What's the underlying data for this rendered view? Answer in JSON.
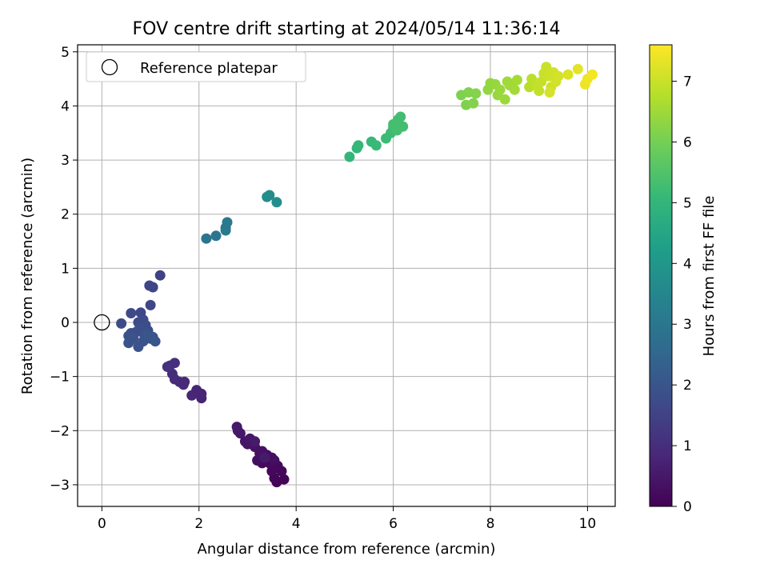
{
  "chart_data": {
    "type": "scatter",
    "title": "FOV centre drift starting at 2024/05/14 11:36:14",
    "xlabel": "Angular distance from reference (arcmin)",
    "ylabel": "Rotation from reference (arcmin)",
    "xlim": [
      -0.5,
      10.57
    ],
    "ylim": [
      -3.4,
      5.13
    ],
    "xticks": [
      0,
      2,
      4,
      6,
      8,
      10
    ],
    "yticks": [
      -3,
      -2,
      -1,
      0,
      1,
      2,
      3,
      4,
      5
    ],
    "grid": true,
    "legend": {
      "position": "top-left",
      "entries": [
        "Reference platepar"
      ]
    },
    "reference_point": {
      "name": "Reference platepar",
      "x": 0,
      "y": 0,
      "marker": "open-circle"
    },
    "colorbar": {
      "label": "Hours from first FF file",
      "range": [
        0,
        7.6
      ],
      "ticks": [
        0,
        1,
        2,
        3,
        4,
        5,
        6,
        7
      ],
      "colormap": "viridis"
    },
    "points": [
      {
        "x": 3.6,
        "y": -2.95,
        "c": 0.05
      },
      {
        "x": 3.75,
        "y": -2.9,
        "c": 0.08
      },
      {
        "x": 3.55,
        "y": -2.88,
        "c": 0.1
      },
      {
        "x": 3.7,
        "y": -2.75,
        "c": 0.12
      },
      {
        "x": 3.5,
        "y": -2.75,
        "c": 0.15
      },
      {
        "x": 3.62,
        "y": -2.65,
        "c": 0.18
      },
      {
        "x": 3.45,
        "y": -2.6,
        "c": 0.2
      },
      {
        "x": 3.3,
        "y": -2.6,
        "c": 0.22
      },
      {
        "x": 3.55,
        "y": -2.55,
        "c": 0.25
      },
      {
        "x": 3.2,
        "y": -2.55,
        "c": 0.27
      },
      {
        "x": 3.4,
        "y": -2.45,
        "c": 0.3
      },
      {
        "x": 3.25,
        "y": -2.42,
        "c": 0.32
      },
      {
        "x": 3.5,
        "y": -2.5,
        "c": 0.33
      },
      {
        "x": 3.3,
        "y": -2.38,
        "c": 0.35
      },
      {
        "x": 3.15,
        "y": -2.3,
        "c": 0.38
      },
      {
        "x": 3.0,
        "y": -2.25,
        "c": 0.4
      },
      {
        "x": 2.95,
        "y": -2.2,
        "c": 0.42
      },
      {
        "x": 3.05,
        "y": -2.15,
        "c": 0.45
      },
      {
        "x": 2.85,
        "y": -2.05,
        "c": 0.48
      },
      {
        "x": 2.8,
        "y": -2.0,
        "c": 0.5
      },
      {
        "x": 2.78,
        "y": -1.93,
        "c": 0.52
      },
      {
        "x": 3.15,
        "y": -2.2,
        "c": 0.55
      },
      {
        "x": 3.35,
        "y": -2.5,
        "c": 0.57
      },
      {
        "x": 2.05,
        "y": -1.4,
        "c": 0.75
      },
      {
        "x": 2.05,
        "y": -1.32,
        "c": 0.78
      },
      {
        "x": 1.95,
        "y": -1.25,
        "c": 0.8
      },
      {
        "x": 1.85,
        "y": -1.35,
        "c": 0.83
      },
      {
        "x": 1.7,
        "y": -1.1,
        "c": 0.87
      },
      {
        "x": 1.6,
        "y": -1.1,
        "c": 0.9
      },
      {
        "x": 1.68,
        "y": -1.15,
        "c": 0.92
      },
      {
        "x": 1.5,
        "y": -1.05,
        "c": 0.95
      },
      {
        "x": 1.45,
        "y": -0.95,
        "c": 0.98
      },
      {
        "x": 1.4,
        "y": -0.8,
        "c": 1.02
      },
      {
        "x": 1.5,
        "y": -0.75,
        "c": 1.05
      },
      {
        "x": 1.35,
        "y": -0.82,
        "c": 1.08
      },
      {
        "x": 1.2,
        "y": 0.87,
        "c": 1.5
      },
      {
        "x": 1.05,
        "y": 0.65,
        "c": 1.55
      },
      {
        "x": 0.98,
        "y": 0.68,
        "c": 1.6
      },
      {
        "x": 1.0,
        "y": 0.32,
        "c": 1.62
      },
      {
        "x": 0.8,
        "y": 0.18,
        "c": 1.65
      },
      {
        "x": 0.6,
        "y": 0.17,
        "c": 1.68
      },
      {
        "x": 0.85,
        "y": 0.05,
        "c": 1.7
      },
      {
        "x": 0.75,
        "y": 0.0,
        "c": 1.72
      },
      {
        "x": 0.4,
        "y": -0.02,
        "c": 1.75
      },
      {
        "x": 0.9,
        "y": -0.05,
        "c": 1.76
      },
      {
        "x": 0.95,
        "y": -0.15,
        "c": 1.78
      },
      {
        "x": 0.88,
        "y": -0.25,
        "c": 1.8
      },
      {
        "x": 0.78,
        "y": -0.1,
        "c": 1.82
      },
      {
        "x": 0.7,
        "y": -0.18,
        "c": 1.84
      },
      {
        "x": 0.6,
        "y": -0.2,
        "c": 1.86
      },
      {
        "x": 0.55,
        "y": -0.25,
        "c": 1.88
      },
      {
        "x": 0.65,
        "y": -0.3,
        "c": 1.9
      },
      {
        "x": 0.55,
        "y": -0.38,
        "c": 1.92
      },
      {
        "x": 0.75,
        "y": -0.45,
        "c": 1.94
      },
      {
        "x": 0.85,
        "y": -0.35,
        "c": 1.96
      },
      {
        "x": 1.0,
        "y": -0.3,
        "c": 1.98
      },
      {
        "x": 1.1,
        "y": -0.35,
        "c": 2.0
      },
      {
        "x": 1.05,
        "y": -0.27,
        "c": 2.02
      },
      {
        "x": 0.92,
        "y": -0.22,
        "c": 2.04
      },
      {
        "x": 2.15,
        "y": 1.55,
        "c": 2.95
      },
      {
        "x": 2.35,
        "y": 1.6,
        "c": 3.0
      },
      {
        "x": 2.55,
        "y": 1.7,
        "c": 3.05
      },
      {
        "x": 2.55,
        "y": 1.75,
        "c": 3.08
      },
      {
        "x": 2.58,
        "y": 1.85,
        "c": 3.1
      },
      {
        "x": 3.4,
        "y": 2.32,
        "c": 3.7
      },
      {
        "x": 3.45,
        "y": 2.35,
        "c": 3.72
      },
      {
        "x": 3.6,
        "y": 2.22,
        "c": 3.75
      },
      {
        "x": 5.1,
        "y": 3.06,
        "c": 5.0
      },
      {
        "x": 5.25,
        "y": 3.22,
        "c": 5.03
      },
      {
        "x": 5.28,
        "y": 3.27,
        "c": 5.06
      },
      {
        "x": 5.55,
        "y": 3.34,
        "c": 5.1
      },
      {
        "x": 5.65,
        "y": 3.27,
        "c": 5.13
      },
      {
        "x": 5.85,
        "y": 3.4,
        "c": 5.18
      },
      {
        "x": 5.95,
        "y": 3.5,
        "c": 5.2
      },
      {
        "x": 6.0,
        "y": 3.6,
        "c": 5.22
      },
      {
        "x": 6.05,
        "y": 3.68,
        "c": 5.24
      },
      {
        "x": 6.1,
        "y": 3.75,
        "c": 5.26
      },
      {
        "x": 6.15,
        "y": 3.8,
        "c": 5.28
      },
      {
        "x": 6.2,
        "y": 3.62,
        "c": 5.3
      },
      {
        "x": 6.0,
        "y": 3.66,
        "c": 5.32
      },
      {
        "x": 6.08,
        "y": 3.55,
        "c": 5.34
      },
      {
        "x": 7.4,
        "y": 4.2,
        "c": 6.1
      },
      {
        "x": 7.5,
        "y": 4.02,
        "c": 6.13
      },
      {
        "x": 7.55,
        "y": 4.25,
        "c": 6.15
      },
      {
        "x": 7.65,
        "y": 4.05,
        "c": 6.18
      },
      {
        "x": 7.7,
        "y": 4.23,
        "c": 6.2
      },
      {
        "x": 7.95,
        "y": 4.3,
        "c": 6.35
      },
      {
        "x": 8.0,
        "y": 4.42,
        "c": 6.38
      },
      {
        "x": 8.1,
        "y": 4.4,
        "c": 6.4
      },
      {
        "x": 8.15,
        "y": 4.2,
        "c": 6.42
      },
      {
        "x": 8.2,
        "y": 4.3,
        "c": 6.45
      },
      {
        "x": 8.3,
        "y": 4.12,
        "c": 6.47
      },
      {
        "x": 8.35,
        "y": 4.45,
        "c": 6.5
      },
      {
        "x": 8.4,
        "y": 4.38,
        "c": 6.52
      },
      {
        "x": 8.5,
        "y": 4.3,
        "c": 6.55
      },
      {
        "x": 8.55,
        "y": 4.48,
        "c": 6.58
      },
      {
        "x": 8.8,
        "y": 4.35,
        "c": 6.8
      },
      {
        "x": 8.85,
        "y": 4.5,
        "c": 6.85
      },
      {
        "x": 8.95,
        "y": 4.38,
        "c": 6.9
      },
      {
        "x": 9.0,
        "y": 4.28,
        "c": 6.92
      },
      {
        "x": 9.05,
        "y": 4.45,
        "c": 6.95
      },
      {
        "x": 9.1,
        "y": 4.6,
        "c": 6.97
      },
      {
        "x": 9.15,
        "y": 4.72,
        "c": 7.0
      },
      {
        "x": 9.2,
        "y": 4.55,
        "c": 7.02
      },
      {
        "x": 9.25,
        "y": 4.35,
        "c": 7.05
      },
      {
        "x": 9.3,
        "y": 4.62,
        "c": 7.08
      },
      {
        "x": 9.35,
        "y": 4.45,
        "c": 7.1
      },
      {
        "x": 9.4,
        "y": 4.55,
        "c": 7.12
      },
      {
        "x": 9.22,
        "y": 4.25,
        "c": 7.14
      },
      {
        "x": 9.6,
        "y": 4.58,
        "c": 7.2
      },
      {
        "x": 9.8,
        "y": 4.68,
        "c": 7.3
      },
      {
        "x": 9.95,
        "y": 4.4,
        "c": 7.4
      },
      {
        "x": 10.0,
        "y": 4.5,
        "c": 7.45
      },
      {
        "x": 10.1,
        "y": 4.58,
        "c": 7.5
      }
    ]
  }
}
